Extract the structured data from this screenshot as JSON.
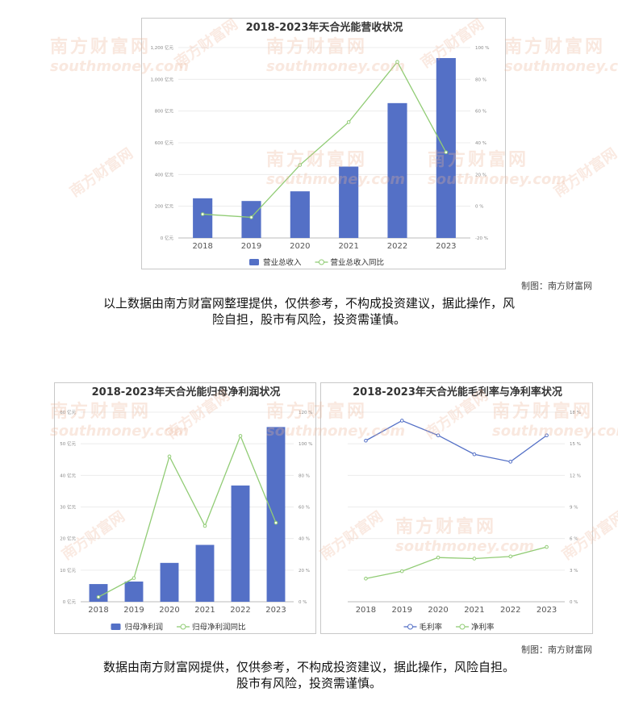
{
  "watermark": {
    "cn": "南方财富网",
    "en": "southmoney.com"
  },
  "charts": [
    {
      "id": "chart1",
      "title": "2018-2023年天合光能营收状况",
      "categories": [
        "2018",
        "2019",
        "2020",
        "2021",
        "2022",
        "2023"
      ],
      "left_ticks": [
        "0 亿元",
        "200 亿元",
        "400 亿元",
        "600 亿元",
        "800 亿元",
        "1,000 亿元",
        "1,200 亿元"
      ],
      "left_ylim": [
        0,
        1200
      ],
      "right_ticks": [
        "-20 %",
        "0 %",
        "20 %",
        "40 %",
        "60 %",
        "80 %",
        "100 %"
      ],
      "right_ylim": [
        -20,
        100
      ],
      "legend": [
        "营业总收入",
        "营业总收入同比"
      ]
    },
    {
      "id": "chart2",
      "title": "2018-2023年天合光能归母净利润状况",
      "categories": [
        "2018",
        "2019",
        "2020",
        "2021",
        "2022",
        "2023"
      ],
      "left_ticks": [
        "0 亿元",
        "10 亿元",
        "20 亿元",
        "30 亿元",
        "40 亿元",
        "50 亿元",
        "60 亿元"
      ],
      "left_ylim": [
        0,
        60
      ],
      "right_ticks": [
        "0 %",
        "20 %",
        "40 %",
        "60 %",
        "80 %",
        "100 %",
        "120 %"
      ],
      "right_ylim": [
        0,
        120
      ],
      "legend": [
        "归母净利润",
        "归母净利润同比"
      ]
    },
    {
      "id": "chart3",
      "title": "2018-2023年天合光能毛利率与净利率状况",
      "categories": [
        "2018",
        "2019",
        "2020",
        "2021",
        "2022",
        "2023"
      ],
      "right_ticks": [
        "0 %",
        "3 %",
        "6 %",
        "9 %",
        "12 %",
        "15 %",
        "18 %"
      ],
      "right_ylim": [
        0,
        18
      ],
      "legend": [
        "毛利率",
        "净利率"
      ]
    }
  ],
  "chart_data": [
    {
      "type": "bar",
      "title": "2018-2023年天合光能营收状况",
      "categories": [
        "2018",
        "2019",
        "2020",
        "2021",
        "2022",
        "2023"
      ],
      "ylim": [
        0,
        1200
      ],
      "y2lim": [
        -20,
        100
      ],
      "series": [
        {
          "name": "营业总收入",
          "kind": "bar",
          "axis": "left",
          "color": "#5470c6",
          "values": [
            250,
            233,
            294,
            450,
            850,
            1134
          ]
        },
        {
          "name": "营业总收入同比",
          "kind": "line",
          "axis": "right",
          "color": "#91cc75",
          "values": [
            -5,
            -7,
            26,
            53,
            91,
            34
          ]
        }
      ],
      "legend_position": "bottom"
    },
    {
      "type": "bar",
      "title": "2018-2023年天合光能归母净利润状况",
      "categories": [
        "2018",
        "2019",
        "2020",
        "2021",
        "2022",
        "2023"
      ],
      "ylim": [
        0,
        60
      ],
      "y2lim": [
        0,
        120
      ],
      "series": [
        {
          "name": "归母净利润",
          "kind": "bar",
          "axis": "left",
          "color": "#5470c6",
          "values": [
            5.6,
            6.4,
            12.3,
            18.0,
            36.8,
            55.3
          ]
        },
        {
          "name": "归母净利润同比",
          "kind": "line",
          "axis": "right",
          "color": "#91cc75",
          "values": [
            3,
            15,
            92,
            48,
            105,
            50
          ]
        }
      ],
      "legend_position": "bottom"
    },
    {
      "type": "line",
      "title": "2018-2023年天合光能毛利率与净利率状况",
      "categories": [
        "2018",
        "2019",
        "2020",
        "2021",
        "2022",
        "2023"
      ],
      "ylim": [
        0,
        18
      ],
      "series": [
        {
          "name": "毛利率",
          "kind": "line",
          "axis": "right",
          "color": "#5470c6",
          "values": [
            15.3,
            17.2,
            15.8,
            14.0,
            13.3,
            15.8
          ]
        },
        {
          "name": "净利率",
          "kind": "line",
          "axis": "right",
          "color": "#91cc75",
          "values": [
            2.2,
            2.9,
            4.2,
            4.1,
            4.3,
            5.2
          ]
        }
      ],
      "legend_position": "bottom"
    }
  ],
  "credits": [
    "制图：南方财富网",
    "制图：南方财富网"
  ],
  "disclaimers": [
    [
      "以上数据由南方财富网整理提供，仅供参考，不构成投资建议，据此操作，风",
      "险自担，股市有风险，投资需谨慎。"
    ],
    [
      "数据由南方财富网提供，仅供参考，不构成投资建议，据此操作，风险自担。",
      "股市有风险，投资需谨慎。"
    ]
  ]
}
